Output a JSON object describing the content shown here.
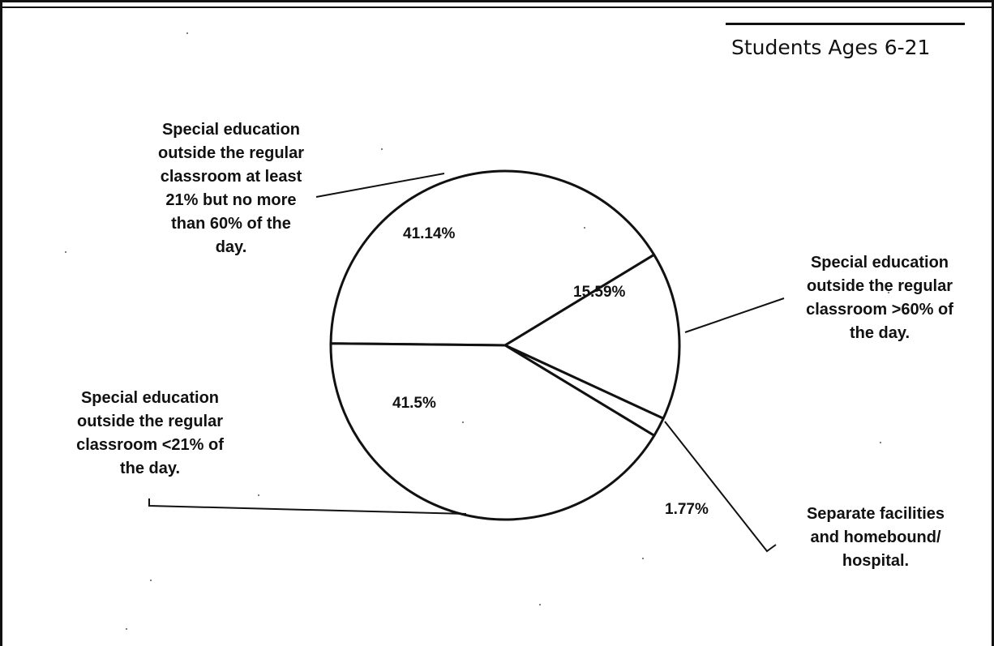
{
  "chart_data": {
    "type": "pie",
    "title": "Students Ages 6-21",
    "slices": [
      {
        "label": "Special education outside the regular classroom at least 21% but no more than 60% of the day.",
        "display_lines": [
          "Special education",
          "outside the regular",
          "classroom at least",
          "21% but no more",
          "than 60% of the",
          "day."
        ],
        "value": 41.14,
        "value_label": "41.14%"
      },
      {
        "label": "Special education outside the regular classroom >60% of the day.",
        "display_lines": [
          "Special education",
          "outside the regular",
          "classroom >60% of",
          "the day."
        ],
        "value": 15.59,
        "value_label": "15.59%"
      },
      {
        "label": "Separate facilities and homebound/ hospital.",
        "display_lines": [
          "Separate facilities",
          "and homebound/",
          "hospital."
        ],
        "value": 1.77,
        "value_label": "1.77%"
      },
      {
        "label": "Special education outside the regular classroom <21% of the day.",
        "display_lines": [
          "Special education",
          "outside the regular",
          "classroom <21% of",
          "the day."
        ],
        "value": 41.5,
        "value_label": "41.5%"
      }
    ],
    "colors": {
      "stroke": "#111111",
      "fill": "#ffffff"
    },
    "legend": "callout labels"
  }
}
